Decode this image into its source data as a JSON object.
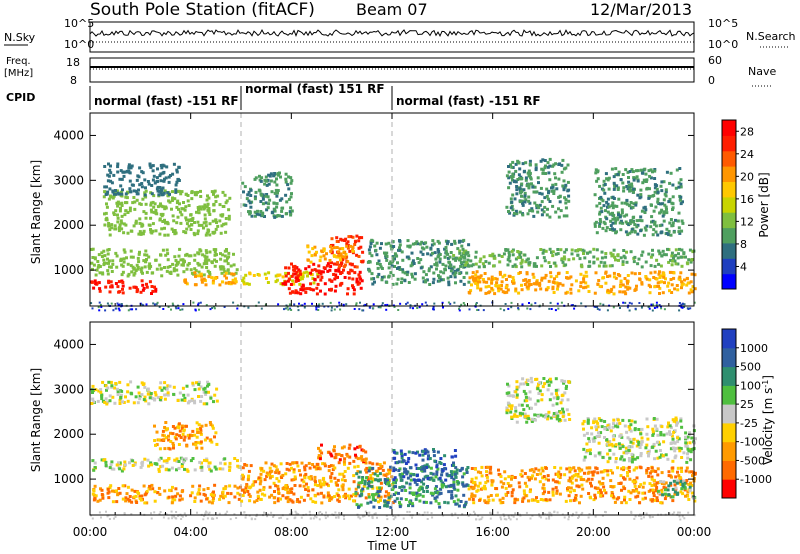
{
  "header": {
    "station": "South Pole Station (fitACF)",
    "beam": "Beam 07",
    "date": "12/Mar/2013"
  },
  "strips": {
    "nsky_label": "N.Sky",
    "nsky_ticks": [
      "10^5",
      "10^0"
    ],
    "nsearch_label": "N.Search",
    "nsearch_ticks": [
      "10^5",
      "10^0"
    ],
    "freq_label_1": "Freq.",
    "freq_label_2": "[MHz]",
    "freq_ticks": [
      "18",
      "8"
    ],
    "nave_label": "Nave",
    "nave_ticks": [
      "60",
      "0"
    ],
    "cpid_label": "CPID",
    "cpid_segments": [
      {
        "label": "normal (fast) -151 RF",
        "start_hour": 0,
        "end_hour": 6
      },
      {
        "label": "normal (fast) 151 RF",
        "start_hour": 6,
        "end_hour": 12
      },
      {
        "label": "normal (fast) -151 RF",
        "start_hour": 12,
        "end_hour": 24
      }
    ]
  },
  "chart_data": [
    {
      "type": "heatmap",
      "name": "power",
      "ylabel": "Slant Range [km]",
      "xlabel": "Time UT",
      "x_ticks": [
        "00:00",
        "04:00",
        "08:00",
        "12:00",
        "16:00",
        "20:00",
        "00:00"
      ],
      "x_tick_hours": [
        0,
        4,
        8,
        12,
        16,
        20,
        24
      ],
      "xlim": [
        0,
        24
      ],
      "ylim": [
        200,
        4500
      ],
      "y_ticks": [
        1000,
        2000,
        3000,
        4000
      ],
      "colorbar": {
        "label": "Power [dB]",
        "ticks": [
          4,
          8,
          12,
          16,
          20,
          24,
          28
        ],
        "range": [
          0,
          30
        ],
        "colors": [
          "#0000ff",
          "#1f3fbf",
          "#2f6f7f",
          "#4f9f5f",
          "#7fbf3f",
          "#c8d400",
          "#ffc800",
          "#ff9600",
          "#ff5a00",
          "#ff1e00",
          "#ff0000"
        ]
      },
      "blobs": [
        {
          "t0": 0.0,
          "t1": 2.6,
          "r0": 500,
          "r1": 800,
          "level": 28
        },
        {
          "t0": 0.0,
          "t1": 5.8,
          "r0": 900,
          "r1": 1500,
          "level": 12
        },
        {
          "t0": 0.5,
          "t1": 5.5,
          "r0": 1800,
          "r1": 2800,
          "level": 12
        },
        {
          "t0": 0.5,
          "t1": 3.5,
          "r0": 2700,
          "r1": 3400,
          "level": 6
        },
        {
          "t0": 3.5,
          "t1": 5.8,
          "r0": 700,
          "r1": 1000,
          "level": 20
        },
        {
          "t0": 6.0,
          "t1": 8.0,
          "r0": 2200,
          "r1": 3200,
          "level": 8
        },
        {
          "t0": 6.0,
          "t1": 9.0,
          "r0": 700,
          "r1": 1000,
          "level": 16
        },
        {
          "t0": 7.6,
          "t1": 10.8,
          "r0": 500,
          "r1": 1200,
          "level": 28
        },
        {
          "t0": 9.5,
          "t1": 10.8,
          "r0": 1100,
          "r1": 1800,
          "level": 26
        },
        {
          "t0": 8.5,
          "t1": 10.5,
          "r0": 1200,
          "r1": 1600,
          "level": 20
        },
        {
          "t0": 11.0,
          "t1": 15.0,
          "r0": 700,
          "r1": 1700,
          "level": 8
        },
        {
          "t0": 15.0,
          "t1": 24.0,
          "r0": 500,
          "r1": 1000,
          "level": 20
        },
        {
          "t0": 14.0,
          "t1": 24.0,
          "r0": 1100,
          "r1": 1500,
          "level": 10
        },
        {
          "t0": 16.5,
          "t1": 19.0,
          "r0": 2200,
          "r1": 3500,
          "level": 8
        },
        {
          "t0": 20.0,
          "t1": 23.5,
          "r0": 1800,
          "r1": 3300,
          "level": 8
        }
      ]
    },
    {
      "type": "heatmap",
      "name": "velocity",
      "ylabel": "Slant Range [km]",
      "xlabel": "Time UT",
      "x_ticks": [
        "00:00",
        "04:00",
        "08:00",
        "12:00",
        "16:00",
        "20:00",
        "00:00"
      ],
      "x_tick_hours": [
        0,
        4,
        8,
        12,
        16,
        20,
        24
      ],
      "xlim": [
        0,
        24
      ],
      "ylim": [
        200,
        4500
      ],
      "y_ticks": [
        1000,
        2000,
        3000,
        4000
      ],
      "colorbar": {
        "label": "Velocity [m s^-1]",
        "tick_labels": [
          "1000",
          "500",
          "100",
          "25",
          "-25",
          "-100",
          "-500",
          "-1000"
        ],
        "colors": [
          "#2040c0",
          "#30609f",
          "#2f8f6f",
          "#4fbf3f",
          "#c8c8c8",
          "#ffd000",
          "#ff9a00",
          "#ff6a00",
          "#ff0000"
        ]
      },
      "blobs": [
        {
          "t0": 0.0,
          "t1": 6.0,
          "r0": 500,
          "r1": 900,
          "level": 6
        },
        {
          "t0": 0.0,
          "t1": 6.0,
          "r0": 1200,
          "r1": 1500,
          "level": 4
        },
        {
          "t0": 0.0,
          "t1": 5.0,
          "r0": 2700,
          "r1": 3200,
          "level": 4
        },
        {
          "t0": 2.5,
          "t1": 5.0,
          "r0": 1700,
          "r1": 2300,
          "level": 6
        },
        {
          "t0": 6.0,
          "t1": 12.0,
          "r0": 500,
          "r1": 1400,
          "level": 6
        },
        {
          "t0": 9.0,
          "t1": 11.0,
          "r0": 1400,
          "r1": 1800,
          "level": 7
        },
        {
          "t0": 10.5,
          "t1": 15.0,
          "r0": 400,
          "r1": 1300,
          "level": 2
        },
        {
          "t0": 12.0,
          "t1": 14.5,
          "r0": 1000,
          "r1": 1700,
          "level": 1
        },
        {
          "t0": 15.0,
          "t1": 24.0,
          "r0": 500,
          "r1": 1300,
          "level": 6
        },
        {
          "t0": 16.5,
          "t1": 19.0,
          "r0": 2300,
          "r1": 3300,
          "level": 4
        },
        {
          "t0": 19.5,
          "t1": 24.0,
          "r0": 1400,
          "r1": 2400,
          "level": 4
        },
        {
          "t0": 22.5,
          "t1": 24.0,
          "r0": 600,
          "r1": 1000,
          "level": 3
        }
      ]
    }
  ]
}
